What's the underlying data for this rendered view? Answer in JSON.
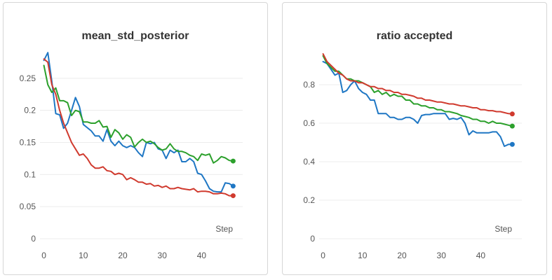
{
  "chart_data": [
    {
      "type": "line",
      "title": "mean_std_posterior",
      "xlabel": "Step",
      "ylabel": "",
      "xlim": [
        -1,
        49
      ],
      "ylim": [
        0,
        0.3
      ],
      "xticks": [
        0,
        10,
        20,
        30,
        40
      ],
      "yticks": [
        0,
        0.05,
        0.1,
        0.15,
        0.2,
        0.25
      ],
      "ytick_labels": [
        "0",
        "0.05",
        "0.1",
        "0.15",
        "0.2",
        "0.25"
      ],
      "grid": true,
      "series": [
        {
          "color": "#1f77c4",
          "x": [
            0,
            1,
            2,
            3,
            4,
            5,
            6,
            7,
            8,
            9,
            10,
            11,
            12,
            13,
            14,
            15,
            16,
            17,
            18,
            19,
            20,
            21,
            22,
            23,
            24,
            25,
            26,
            27,
            28,
            29,
            30,
            31,
            32,
            33,
            34,
            35,
            36,
            37,
            38,
            39,
            40,
            41,
            42,
            43,
            44,
            45,
            46,
            47,
            48
          ],
          "y": [
            0.278,
            0.29,
            0.245,
            0.195,
            0.193,
            0.172,
            0.18,
            0.2,
            0.22,
            0.206,
            0.178,
            0.173,
            0.168,
            0.16,
            0.16,
            0.152,
            0.17,
            0.152,
            0.145,
            0.152,
            0.145,
            0.142,
            0.145,
            0.142,
            0.134,
            0.128,
            0.15,
            0.148,
            0.15,
            0.14,
            0.138,
            0.125,
            0.138,
            0.134,
            0.138,
            0.12,
            0.12,
            0.125,
            0.12,
            0.102,
            0.1,
            0.09,
            0.078,
            0.074,
            0.073,
            0.073,
            0.087,
            0.086,
            0.082
          ]
        },
        {
          "color": "#2ca02c",
          "x": [
            0,
            1,
            2,
            3,
            4,
            5,
            6,
            7,
            8,
            9,
            10,
            11,
            12,
            13,
            14,
            15,
            16,
            17,
            18,
            19,
            20,
            21,
            22,
            23,
            24,
            25,
            26,
            27,
            28,
            29,
            30,
            31,
            32,
            33,
            34,
            35,
            36,
            37,
            38,
            39,
            40,
            41,
            42,
            43,
            44,
            45,
            46,
            47,
            48
          ],
          "y": [
            0.27,
            0.24,
            0.228,
            0.235,
            0.215,
            0.215,
            0.212,
            0.192,
            0.2,
            0.198,
            0.182,
            0.182,
            0.18,
            0.18,
            0.184,
            0.174,
            0.175,
            0.158,
            0.17,
            0.165,
            0.155,
            0.162,
            0.158,
            0.143,
            0.15,
            0.155,
            0.15,
            0.152,
            0.148,
            0.142,
            0.138,
            0.14,
            0.148,
            0.14,
            0.136,
            0.136,
            0.134,
            0.13,
            0.128,
            0.122,
            0.132,
            0.13,
            0.132,
            0.118,
            0.122,
            0.128,
            0.126,
            0.122,
            0.121
          ]
        },
        {
          "color": "#d03a2e",
          "x": [
            0,
            1,
            2,
            3,
            4,
            5,
            6,
            7,
            8,
            9,
            10,
            11,
            12,
            13,
            14,
            15,
            16,
            17,
            18,
            19,
            20,
            21,
            22,
            23,
            24,
            25,
            26,
            27,
            28,
            29,
            30,
            31,
            32,
            33,
            34,
            35,
            36,
            37,
            38,
            39,
            40,
            41,
            42,
            43,
            44,
            45,
            46,
            47,
            48
          ],
          "y": [
            0.28,
            0.275,
            0.24,
            0.225,
            0.2,
            0.18,
            0.165,
            0.15,
            0.14,
            0.13,
            0.132,
            0.125,
            0.115,
            0.11,
            0.11,
            0.112,
            0.106,
            0.105,
            0.1,
            0.102,
            0.1,
            0.092,
            0.095,
            0.092,
            0.088,
            0.088,
            0.085,
            0.086,
            0.082,
            0.083,
            0.08,
            0.082,
            0.078,
            0.078,
            0.08,
            0.078,
            0.077,
            0.076,
            0.078,
            0.073,
            0.074,
            0.074,
            0.073,
            0.07,
            0.07,
            0.071,
            0.07,
            0.067,
            0.067
          ]
        }
      ]
    },
    {
      "type": "line",
      "title": "ratio accepted",
      "xlabel": "Step",
      "ylabel": "",
      "xlim": [
        -1,
        49
      ],
      "ylim": [
        0,
        1.0
      ],
      "xticks": [
        0,
        10,
        20,
        30,
        40
      ],
      "yticks": [
        0,
        0.2,
        0.4,
        0.6,
        0.8
      ],
      "ytick_labels": [
        "0",
        "0.2",
        "0.4",
        "0.6",
        "0.8"
      ],
      "grid": true,
      "series": [
        {
          "color": "#1f77c4",
          "x": [
            0,
            1,
            2,
            3,
            4,
            5,
            6,
            7,
            8,
            9,
            10,
            11,
            12,
            13,
            14,
            15,
            16,
            17,
            18,
            19,
            20,
            21,
            22,
            23,
            24,
            25,
            26,
            27,
            28,
            29,
            30,
            31,
            32,
            33,
            34,
            35,
            36,
            37,
            38,
            39,
            40,
            41,
            42,
            43,
            44,
            45,
            46,
            47,
            48
          ],
          "y": [
            0.92,
            0.91,
            0.88,
            0.85,
            0.86,
            0.76,
            0.77,
            0.8,
            0.82,
            0.78,
            0.76,
            0.75,
            0.72,
            0.72,
            0.65,
            0.65,
            0.65,
            0.63,
            0.63,
            0.62,
            0.62,
            0.63,
            0.63,
            0.62,
            0.6,
            0.64,
            0.645,
            0.645,
            0.65,
            0.65,
            0.65,
            0.65,
            0.62,
            0.625,
            0.62,
            0.63,
            0.6,
            0.54,
            0.56,
            0.55,
            0.55,
            0.55,
            0.55,
            0.555,
            0.555,
            0.53,
            0.48,
            0.49,
            0.49
          ]
        },
        {
          "color": "#2ca02c",
          "x": [
            0,
            1,
            2,
            3,
            4,
            5,
            6,
            7,
            8,
            9,
            10,
            11,
            12,
            13,
            14,
            15,
            16,
            17,
            18,
            19,
            20,
            21,
            22,
            23,
            24,
            25,
            26,
            27,
            28,
            29,
            30,
            31,
            32,
            33,
            34,
            35,
            36,
            37,
            38,
            39,
            40,
            41,
            42,
            43,
            44,
            45,
            46,
            47,
            48
          ],
          "y": [
            0.95,
            0.91,
            0.89,
            0.87,
            0.87,
            0.85,
            0.83,
            0.83,
            0.82,
            0.82,
            0.81,
            0.8,
            0.79,
            0.76,
            0.77,
            0.75,
            0.76,
            0.74,
            0.75,
            0.74,
            0.74,
            0.72,
            0.72,
            0.7,
            0.7,
            0.69,
            0.69,
            0.68,
            0.68,
            0.67,
            0.67,
            0.66,
            0.66,
            0.655,
            0.65,
            0.64,
            0.635,
            0.63,
            0.62,
            0.62,
            0.61,
            0.61,
            0.6,
            0.61,
            0.6,
            0.6,
            0.595,
            0.59,
            0.585
          ]
        },
        {
          "color": "#d03a2e",
          "x": [
            0,
            1,
            2,
            3,
            4,
            5,
            6,
            7,
            8,
            9,
            10,
            11,
            12,
            13,
            14,
            15,
            16,
            17,
            18,
            19,
            20,
            21,
            22,
            23,
            24,
            25,
            26,
            27,
            28,
            29,
            30,
            31,
            32,
            33,
            34,
            35,
            36,
            37,
            38,
            39,
            40,
            41,
            42,
            43,
            44,
            45,
            46,
            47,
            48
          ],
          "y": [
            0.96,
            0.92,
            0.9,
            0.88,
            0.86,
            0.85,
            0.83,
            0.82,
            0.82,
            0.81,
            0.81,
            0.8,
            0.79,
            0.79,
            0.78,
            0.78,
            0.77,
            0.77,
            0.76,
            0.76,
            0.75,
            0.75,
            0.745,
            0.74,
            0.73,
            0.73,
            0.72,
            0.72,
            0.715,
            0.71,
            0.71,
            0.705,
            0.7,
            0.7,
            0.695,
            0.69,
            0.69,
            0.685,
            0.68,
            0.68,
            0.67,
            0.67,
            0.665,
            0.665,
            0.66,
            0.66,
            0.655,
            0.65,
            0.648
          ]
        }
      ]
    }
  ]
}
